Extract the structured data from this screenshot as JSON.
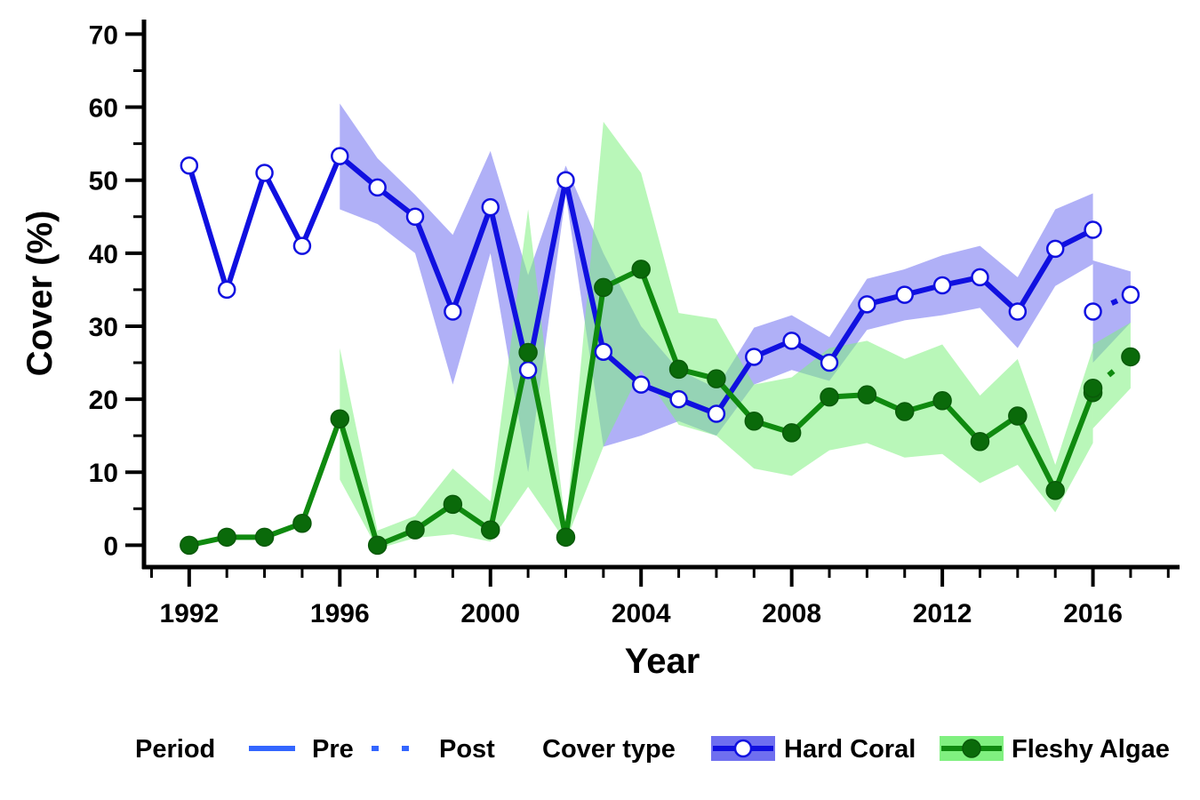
{
  "chart_data": {
    "type": "line",
    "xlabel": "Year",
    "ylabel": "Cover (%)",
    "xlim": [
      1990.8,
      2018.3
    ],
    "ylim": [
      -3,
      72
    ],
    "x_ticks": [
      1992,
      1996,
      2000,
      2004,
      2008,
      2012,
      2016
    ],
    "y_ticks": [
      0,
      10,
      20,
      30,
      40,
      50,
      60,
      70
    ],
    "grid": false,
    "legend": {
      "position": "bottom",
      "period_title": "Period",
      "period_pre": "Pre",
      "period_post": "Post",
      "cover_title": "Cover type"
    },
    "series": [
      {
        "name": "Hard Coral",
        "line_color": "#1010e0",
        "band_color": "#6f6ff0",
        "marker": "open-circle",
        "pre": {
          "x": [
            1992,
            1993,
            1994,
            1995,
            1996,
            1997,
            1998,
            1999,
            2000,
            2001,
            2002,
            2003,
            2004,
            2005,
            2006,
            2007,
            2008,
            2009,
            2010,
            2011,
            2012,
            2013,
            2014,
            2015,
            2016
          ],
          "y": [
            52,
            35,
            51,
            41,
            53.3,
            49,
            45,
            32,
            46.3,
            24,
            50,
            26.5,
            22,
            20,
            18,
            25.8,
            28,
            25,
            33,
            34.3,
            35.6,
            36.7,
            32,
            40.6,
            43.2
          ],
          "lower": [
            null,
            null,
            null,
            null,
            46,
            44,
            40,
            22,
            40,
            10,
            48,
            13.5,
            15,
            17,
            15,
            22,
            24,
            22.5,
            29.5,
            30.8,
            31.5,
            32.5,
            27,
            35.5,
            38.5
          ],
          "upper": [
            null,
            null,
            null,
            null,
            60.5,
            53,
            48,
            42.5,
            54,
            37,
            52,
            40,
            30,
            24,
            21.5,
            29.8,
            31.5,
            28.5,
            36.5,
            37.8,
            39.7,
            41,
            36.7,
            46,
            48.2
          ]
        },
        "post": {
          "x": [
            2016,
            2017
          ],
          "y": [
            32,
            34.3
          ],
          "lower": [
            25,
            30.5
          ],
          "upper": [
            39,
            37.5
          ]
        }
      },
      {
        "name": "Fleshy Algae",
        "line_color": "#0f8a0f",
        "band_color": "#80f080",
        "marker": "filled-circle",
        "pre": {
          "x": [
            1992,
            1993,
            1994,
            1995,
            1996,
            1997,
            1998,
            1999,
            2000,
            2001,
            2002,
            2003,
            2004,
            2005,
            2006,
            2007,
            2008,
            2009,
            2010,
            2011,
            2012,
            2013,
            2014,
            2015,
            2016
          ],
          "y": [
            0,
            1.1,
            1.1,
            3,
            17.3,
            0,
            2.1,
            5.6,
            2.1,
            26.4,
            1.1,
            35.3,
            37.8,
            24.1,
            22.8,
            17,
            15.4,
            20.3,
            20.6,
            18.3,
            19.8,
            14.2,
            17.7,
            7.5,
            20.9
          ],
          "lower": [
            null,
            null,
            null,
            null,
            9,
            -0.5,
            1,
            1.5,
            0.5,
            8,
            0.5,
            13.5,
            24,
            16.5,
            15,
            10.5,
            9.5,
            13,
            14,
            12,
            12.5,
            8.5,
            11,
            4.5,
            14
          ],
          "upper": [
            null,
            null,
            null,
            null,
            27,
            2,
            4,
            10.5,
            6,
            46,
            2.5,
            58,
            51,
            31.8,
            31,
            22,
            23,
            27,
            28,
            25.5,
            27.5,
            20.5,
            25.5,
            11,
            27
          ]
        },
        "post": {
          "x": [
            2016,
            2017
          ],
          "y": [
            21.5,
            25.8
          ],
          "lower": [
            16,
            21.5
          ],
          "upper": [
            27.5,
            30.5
          ]
        }
      }
    ]
  }
}
